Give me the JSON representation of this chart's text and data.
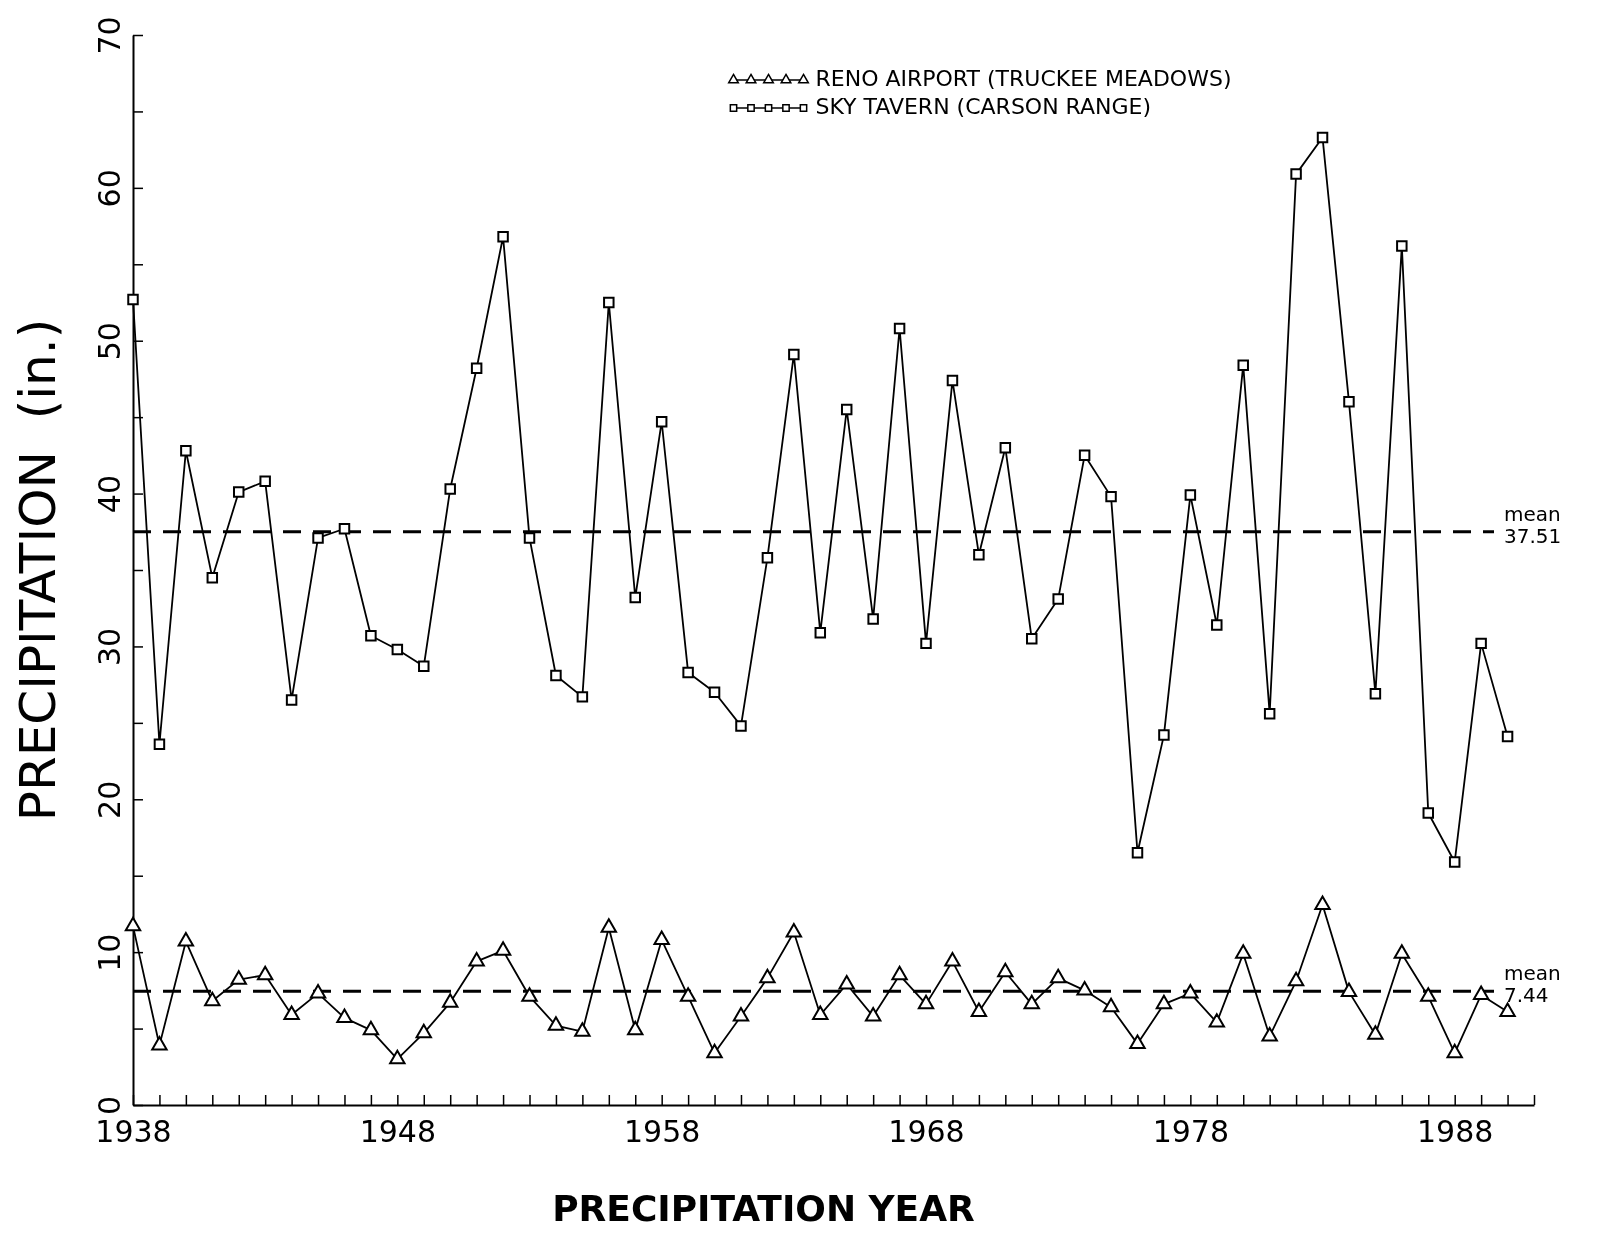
{
  "chart_data": {
    "type": "line",
    "xlabel": "PRECIPITATION YEAR",
    "ylabel": "PRECIPITATION  (in.)",
    "x": [
      1938,
      1939,
      1940,
      1941,
      1942,
      1943,
      1944,
      1945,
      1946,
      1947,
      1948,
      1949,
      1950,
      1951,
      1952,
      1953,
      1954,
      1955,
      1956,
      1957,
      1958,
      1959,
      1960,
      1961,
      1962,
      1963,
      1964,
      1965,
      1966,
      1967,
      1968,
      1969,
      1970,
      1971,
      1972,
      1973,
      1974,
      1975,
      1976,
      1977,
      1978,
      1979,
      1980,
      1981,
      1982,
      1983,
      1984,
      1985,
      1986,
      1987,
      1988,
      1989,
      1990
    ],
    "series": [
      {
        "name": "RENO AIRPORT (TRUCKEE MEADOWS)",
        "color": "#000000",
        "marker": "triangle",
        "values": [
          11.7,
          3.9,
          10.7,
          6.8,
          8.2,
          8.5,
          5.9,
          7.3,
          5.7,
          4.9,
          3.0,
          4.7,
          6.7,
          9.4,
          10.1,
          7.1,
          5.2,
          4.8,
          11.6,
          4.9,
          10.8,
          7.1,
          3.4,
          5.8,
          8.3,
          11.3,
          5.9,
          7.9,
          5.8,
          8.5,
          6.6,
          9.4,
          6.1,
          8.7,
          6.6,
          8.3,
          7.5,
          6.4,
          4.0,
          6.6,
          7.3,
          5.4,
          9.9,
          4.5,
          8.1,
          13.1,
          7.4,
          4.6,
          9.9,
          7.1,
          3.4,
          7.2,
          6.1
        ]
      },
      {
        "name": "SKY TAVERN (CARSON RANGE)",
        "color": "#000000",
        "marker": "square",
        "values": [
          52.7,
          23.6,
          42.8,
          34.5,
          40.1,
          40.8,
          26.5,
          37.1,
          37.7,
          30.7,
          29.8,
          28.7,
          40.3,
          48.2,
          56.8,
          37.1,
          28.1,
          26.7,
          52.5,
          33.2,
          44.7,
          28.3,
          27.0,
          24.8,
          35.8,
          49.1,
          30.9,
          45.5,
          31.8,
          50.8,
          30.2,
          47.4,
          36.0,
          43.0,
          30.5,
          33.1,
          42.5,
          39.8,
          16.5,
          24.2,
          39.9,
          31.4,
          48.4,
          25.6,
          60.9,
          63.3,
          46.0,
          26.9,
          56.2,
          19.1,
          15.9,
          30.2,
          24.1
        ]
      }
    ],
    "xlim": [
      1938,
      1991
    ],
    "xticks": [
      1938,
      {
        "value": 1939,
        "label": null
      },
      {
        "value": 1940,
        "label": null
      },
      {
        "value": 1941,
        "label": null
      },
      {
        "value": 1942,
        "label": null
      },
      {
        "value": 1943,
        "label": null
      },
      {
        "value": 1944,
        "label": null
      },
      {
        "value": 1945,
        "label": null
      },
      {
        "value": 1946,
        "label": null
      },
      {
        "value": 1947,
        "label": null
      },
      1948,
      {
        "value": 1949,
        "label": null
      },
      {
        "value": 1950,
        "label": null
      },
      {
        "value": 1951,
        "label": null
      },
      {
        "value": 1952,
        "label": null
      },
      {
        "value": 1953,
        "label": null
      },
      {
        "value": 1954,
        "label": null
      },
      {
        "value": 1955,
        "label": null
      },
      {
        "value": 1956,
        "label": null
      },
      {
        "value": 1957,
        "label": null
      },
      1958,
      {
        "value": 1959,
        "label": null
      },
      {
        "value": 1960,
        "label": null
      },
      {
        "value": 1961,
        "label": null
      },
      {
        "value": 1962,
        "label": null
      },
      {
        "value": 1963,
        "label": null
      },
      {
        "value": 1964,
        "label": null
      },
      {
        "value": 1965,
        "label": null
      },
      {
        "value": 1966,
        "label": null
      },
      {
        "value": 1967,
        "label": null
      },
      1968,
      {
        "value": 1969,
        "label": null
      },
      {
        "value": 1970,
        "label": null
      },
      {
        "value": 1971,
        "label": null
      },
      {
        "value": 1972,
        "label": null
      },
      {
        "value": 1973,
        "label": null
      },
      {
        "value": 1974,
        "label": null
      },
      {
        "value": 1975,
        "label": null
      },
      {
        "value": 1976,
        "label": null
      },
      {
        "value": 1977,
        "label": null
      },
      1978,
      {
        "value": 1979,
        "label": null
      },
      {
        "value": 1980,
        "label": null
      },
      {
        "value": 1981,
        "label": null
      },
      {
        "value": 1982,
        "label": null
      },
      {
        "value": 1983,
        "label": null
      },
      {
        "value": 1984,
        "label": null
      },
      {
        "value": 1985,
        "label": null
      },
      {
        "value": 1986,
        "label": null
      },
      {
        "value": 1987,
        "label": null
      },
      1988,
      {
        "value": 1989,
        "label": null
      },
      {
        "value": 1990,
        "label": null
      },
      {
        "value": 1991,
        "label": null
      }
    ],
    "ylim": [
      0,
      70
    ],
    "yticks": [
      0,
      {
        "value": 5,
        "label": null
      },
      10,
      {
        "value": 15,
        "label": null
      },
      20,
      {
        "value": 25,
        "label": null
      },
      30,
      {
        "value": 35,
        "label": null
      },
      40,
      {
        "value": 45,
        "label": null
      },
      50,
      {
        "value": 55,
        "label": null
      },
      60,
      {
        "value": 65,
        "label": null
      },
      70
    ],
    "ref_lines": [
      {
        "axis": "y",
        "value": 37.51,
        "label": "mean 37.51",
        "line_style": "dashed"
      },
      {
        "axis": "y",
        "value": 7.44,
        "label": "mean 7.44",
        "line_style": "dashed"
      }
    ],
    "legend": "top",
    "grid": false
  }
}
